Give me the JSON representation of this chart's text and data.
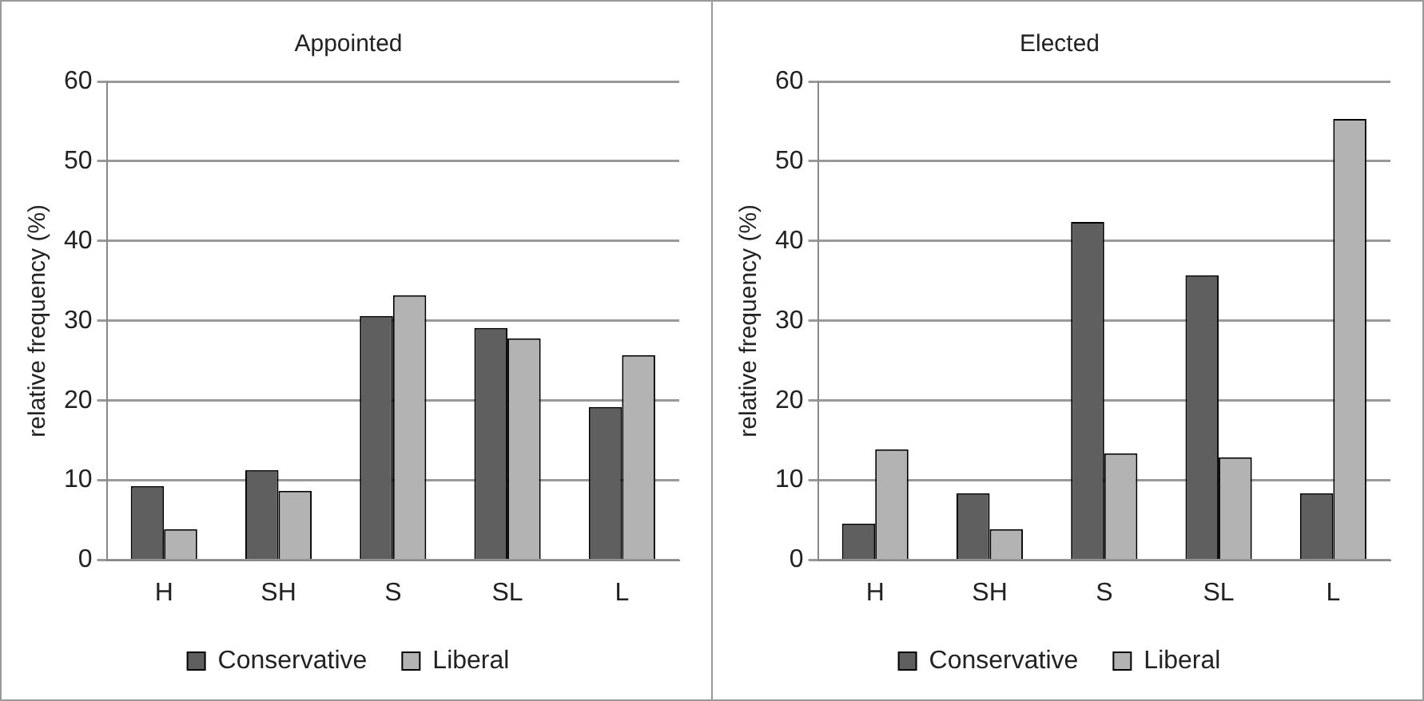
{
  "chart_data": [
    {
      "type": "bar",
      "title": "Appointed",
      "ylabel": "relative frequency (%)",
      "categories": [
        "H",
        "SH",
        "S",
        "SL",
        "L"
      ],
      "series": [
        {
          "name": "Conservative",
          "color": "#5f5f5f",
          "values": [
            9.3,
            11.3,
            30.6,
            29.1,
            19.2
          ]
        },
        {
          "name": "Liberal",
          "color": "#b3b3b3",
          "values": [
            3.9,
            8.7,
            33.2,
            27.8,
            25.7
          ]
        }
      ],
      "ylim": [
        0,
        60
      ],
      "yticks": [
        0,
        10,
        20,
        30,
        40,
        50,
        60
      ],
      "grid": "y",
      "legend": "bottom"
    },
    {
      "type": "bar",
      "title": "Elected",
      "ylabel": "relative frequency (%)",
      "categories": [
        "H",
        "SH",
        "S",
        "SL",
        "L"
      ],
      "series": [
        {
          "name": "Conservative",
          "color": "#5f5f5f",
          "values": [
            4.6,
            8.4,
            42.4,
            35.7,
            8.4
          ]
        },
        {
          "name": "Liberal",
          "color": "#b3b3b3",
          "values": [
            13.9,
            3.9,
            13.4,
            12.9,
            55.3
          ]
        }
      ],
      "ylim": [
        0,
        60
      ],
      "yticks": [
        0,
        10,
        20,
        30,
        40,
        50,
        60
      ],
      "grid": "y",
      "legend": "bottom"
    }
  ]
}
